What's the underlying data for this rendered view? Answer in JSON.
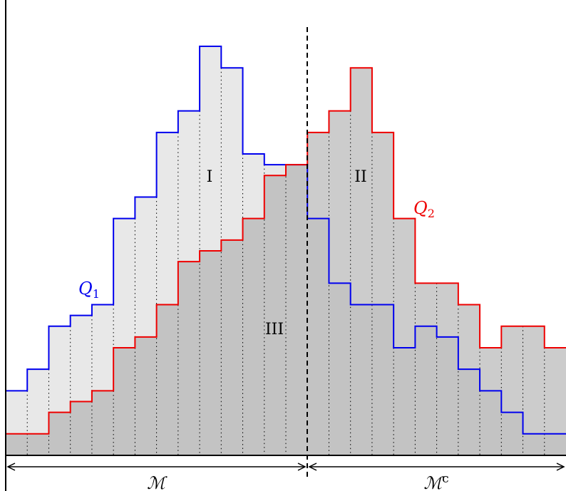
{
  "chart_data": {
    "type": "step-area",
    "bins": 26,
    "ylim": [
      0,
      19
    ],
    "split_after_bin": 14,
    "series": [
      {
        "name": "Q_1",
        "label_main": "Q",
        "label_sub": "1",
        "color": "#0000ee",
        "values": [
          3,
          4,
          6,
          6.5,
          7,
          11,
          12,
          15,
          16,
          19,
          18,
          14,
          13.5,
          13.5,
          11,
          8,
          7,
          7,
          5,
          6,
          5.5,
          4,
          3,
          2,
          1,
          1
        ]
      },
      {
        "name": "Q_2",
        "label_main": "Q",
        "label_sub": "2",
        "color": "#ee0000",
        "values": [
          1,
          1,
          2,
          2.5,
          3,
          5,
          5.5,
          7,
          9,
          9.5,
          10,
          11,
          13,
          13.5,
          15,
          16,
          18,
          15,
          11,
          8,
          8,
          7,
          5,
          6,
          6,
          5
        ]
      }
    ],
    "regions": [
      {
        "id": "I",
        "label": "I"
      },
      {
        "id": "II",
        "label": "II"
      },
      {
        "id": "III",
        "label": "III"
      }
    ],
    "brackets": [
      {
        "id": "M",
        "label_main": "ℳ",
        "label_sup": ""
      },
      {
        "id": "Mc",
        "label_main": "ℳ",
        "label_sup": "c"
      }
    ],
    "fills": {
      "light": "#e8e8e8",
      "mid": "#cccccc",
      "dark": "#c3c3c3"
    }
  }
}
